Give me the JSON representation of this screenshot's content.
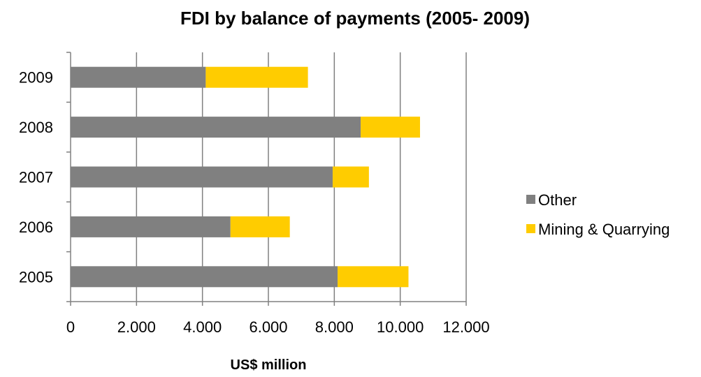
{
  "chart_data": {
    "type": "bar",
    "orientation": "horizontal",
    "stacked": true,
    "title": "FDI by balance of payments (2005- 2009)",
    "xlabel": "US$ million",
    "ylabel": "",
    "categories": [
      "2005",
      "2006",
      "2007",
      "2008",
      "2009"
    ],
    "series": [
      {
        "name": "Other",
        "color": "#808080",
        "values": [
          8100,
          4850,
          7950,
          8800,
          4100
        ]
      },
      {
        "name": "Mining & Quarrying",
        "color": "#FFCC00",
        "values": [
          2150,
          1800,
          1100,
          1800,
          3100
        ]
      }
    ],
    "xlim": [
      0,
      12000
    ],
    "x_ticks": [
      0,
      2000,
      4000,
      6000,
      8000,
      10000,
      12000
    ],
    "x_tick_labels": [
      "0",
      "2.000",
      "4.000",
      "6.000",
      "8.000",
      "10.000",
      "12.000"
    ],
    "grid": "vertical",
    "legend_position": "right"
  }
}
